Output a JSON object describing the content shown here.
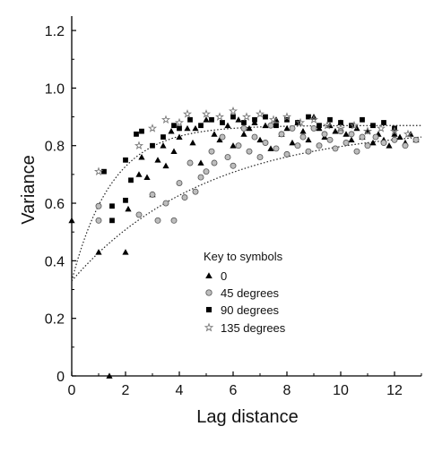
{
  "chart_data": {
    "type": "scatter",
    "xlabel": "Lag distance",
    "ylabel": "Variance",
    "xlim": [
      0,
      13
    ],
    "ylim": [
      0,
      1.25
    ],
    "x_ticks": [
      0,
      2,
      4,
      6,
      8,
      10,
      12
    ],
    "x_tick_labels": [
      "0",
      "2",
      "4",
      "6",
      "8",
      "10",
      "12"
    ],
    "y_ticks": [
      0,
      0.2,
      0.4,
      0.6,
      0.8,
      1.0,
      1.2
    ],
    "y_tick_labels": [
      "0",
      "0.2",
      "0.4",
      "0.6",
      "0.8",
      "1.0",
      "1.2"
    ],
    "grid": false,
    "legend": {
      "title": "Key to symbols",
      "placement": "center-right",
      "entries": [
        {
          "label": "0",
          "marker": "triangle"
        },
        {
          "label": "45 degrees",
          "marker": "circle"
        },
        {
          "label": "90 degrees",
          "marker": "square"
        },
        {
          "label": "135 degrees",
          "marker": "star"
        }
      ]
    },
    "series": [
      {
        "marker": "triangle",
        "color": "#000000",
        "points": [
          [
            0.0,
            0.54
          ],
          [
            1.4,
            0.0
          ],
          [
            1.0,
            0.43
          ],
          [
            2.0,
            0.43
          ],
          [
            2.1,
            0.58
          ],
          [
            2.5,
            0.7
          ],
          [
            2.6,
            0.76
          ],
          [
            2.8,
            0.69
          ],
          [
            3.0,
            0.63
          ],
          [
            3.2,
            0.75
          ],
          [
            3.4,
            0.8
          ],
          [
            3.5,
            0.73
          ],
          [
            3.7,
            0.85
          ],
          [
            3.8,
            0.78
          ],
          [
            4.0,
            0.83
          ],
          [
            4.3,
            0.86
          ],
          [
            4.5,
            0.81
          ],
          [
            4.6,
            0.86
          ],
          [
            4.8,
            0.74
          ],
          [
            5.0,
            0.89
          ],
          [
            5.3,
            0.84
          ],
          [
            5.5,
            0.82
          ],
          [
            5.8,
            0.87
          ],
          [
            6.0,
            0.8
          ],
          [
            6.2,
            0.89
          ],
          [
            6.4,
            0.84
          ],
          [
            6.6,
            0.86
          ],
          [
            6.8,
            0.88
          ],
          [
            7.0,
            0.82
          ],
          [
            7.2,
            0.87
          ],
          [
            7.4,
            0.79
          ],
          [
            7.6,
            0.89
          ],
          [
            7.8,
            0.84
          ],
          [
            8.0,
            0.86
          ],
          [
            8.2,
            0.81
          ],
          [
            8.4,
            0.88
          ],
          [
            8.6,
            0.85
          ],
          [
            8.8,
            0.82
          ],
          [
            9.0,
            0.9
          ],
          [
            9.2,
            0.86
          ],
          [
            9.4,
            0.83
          ],
          [
            9.6,
            0.87
          ],
          [
            9.8,
            0.85
          ],
          [
            10.0,
            0.88
          ],
          [
            10.2,
            0.84
          ],
          [
            10.4,
            0.82
          ],
          [
            10.6,
            0.86
          ],
          [
            10.8,
            0.83
          ],
          [
            11.0,
            0.85
          ],
          [
            11.2,
            0.81
          ],
          [
            11.4,
            0.84
          ],
          [
            11.6,
            0.82
          ],
          [
            11.8,
            0.8
          ],
          [
            12.0,
            0.84
          ],
          [
            12.2,
            0.83
          ],
          [
            12.4,
            0.81
          ],
          [
            12.6,
            0.84
          ],
          [
            12.8,
            0.82
          ]
        ]
      },
      {
        "marker": "circle",
        "color": "#9a9a9a",
        "points": [
          [
            1.0,
            0.59
          ],
          [
            1.0,
            0.54
          ],
          [
            2.5,
            0.56
          ],
          [
            3.0,
            0.63
          ],
          [
            3.2,
            0.54
          ],
          [
            3.5,
            0.6
          ],
          [
            3.8,
            0.54
          ],
          [
            4.0,
            0.67
          ],
          [
            4.2,
            0.62
          ],
          [
            4.4,
            0.74
          ],
          [
            4.6,
            0.64
          ],
          [
            4.8,
            0.69
          ],
          [
            5.0,
            0.71
          ],
          [
            5.2,
            0.78
          ],
          [
            5.3,
            0.74
          ],
          [
            5.6,
            0.83
          ],
          [
            5.8,
            0.76
          ],
          [
            6.0,
            0.73
          ],
          [
            6.2,
            0.8
          ],
          [
            6.4,
            0.86
          ],
          [
            6.6,
            0.78
          ],
          [
            6.8,
            0.83
          ],
          [
            7.0,
            0.76
          ],
          [
            7.2,
            0.81
          ],
          [
            7.4,
            0.87
          ],
          [
            7.6,
            0.79
          ],
          [
            7.8,
            0.84
          ],
          [
            8.0,
            0.77
          ],
          [
            8.2,
            0.86
          ],
          [
            8.4,
            0.8
          ],
          [
            8.6,
            0.83
          ],
          [
            8.8,
            0.78
          ],
          [
            9.0,
            0.86
          ],
          [
            9.2,
            0.8
          ],
          [
            9.4,
            0.84
          ],
          [
            9.6,
            0.82
          ],
          [
            9.8,
            0.79
          ],
          [
            10.0,
            0.85
          ],
          [
            10.2,
            0.81
          ],
          [
            10.4,
            0.84
          ],
          [
            10.6,
            0.78
          ],
          [
            10.8,
            0.83
          ],
          [
            11.0,
            0.8
          ],
          [
            11.3,
            0.83
          ],
          [
            11.6,
            0.81
          ],
          [
            12.0,
            0.82
          ],
          [
            12.4,
            0.8
          ],
          [
            12.8,
            0.82
          ]
        ]
      },
      {
        "marker": "square",
        "color": "#000000",
        "points": [
          [
            1.2,
            0.71
          ],
          [
            1.5,
            0.54
          ],
          [
            1.5,
            0.59
          ],
          [
            2.0,
            0.61
          ],
          [
            2.0,
            0.75
          ],
          [
            2.2,
            0.68
          ],
          [
            2.4,
            0.84
          ],
          [
            2.6,
            0.85
          ],
          [
            3.0,
            0.8
          ],
          [
            3.4,
            0.83
          ],
          [
            3.8,
            0.87
          ],
          [
            4.0,
            0.86
          ],
          [
            4.4,
            0.89
          ],
          [
            4.8,
            0.87
          ],
          [
            5.2,
            0.89
          ],
          [
            5.6,
            0.88
          ],
          [
            6.0,
            0.9
          ],
          [
            6.4,
            0.88
          ],
          [
            6.8,
            0.89
          ],
          [
            7.2,
            0.9
          ],
          [
            7.6,
            0.87
          ],
          [
            8.0,
            0.89
          ],
          [
            8.4,
            0.88
          ],
          [
            8.8,
            0.9
          ],
          [
            9.2,
            0.87
          ],
          [
            9.6,
            0.89
          ],
          [
            10.0,
            0.88
          ],
          [
            10.4,
            0.87
          ],
          [
            10.8,
            0.89
          ],
          [
            11.2,
            0.87
          ],
          [
            11.6,
            0.88
          ],
          [
            12.0,
            0.86
          ]
        ]
      },
      {
        "marker": "star",
        "color": "#777777",
        "points": [
          [
            1.0,
            0.71
          ],
          [
            2.5,
            0.8
          ],
          [
            3.0,
            0.86
          ],
          [
            3.5,
            0.89
          ],
          [
            4.0,
            0.88
          ],
          [
            4.3,
            0.91
          ],
          [
            5.0,
            0.91
          ],
          [
            5.5,
            0.9
          ],
          [
            6.0,
            0.92
          ],
          [
            6.5,
            0.9
          ],
          [
            7.0,
            0.91
          ],
          [
            7.5,
            0.89
          ],
          [
            8.0,
            0.9
          ],
          [
            8.5,
            0.88
          ],
          [
            9.0,
            0.89
          ],
          [
            9.5,
            0.87
          ],
          [
            10.0,
            0.86
          ],
          [
            10.5,
            0.87
          ],
          [
            11.0,
            0.85
          ],
          [
            11.5,
            0.86
          ],
          [
            12.0,
            0.85
          ],
          [
            12.5,
            0.84
          ]
        ]
      }
    ],
    "fitted_curves": [
      {
        "model": "exponential",
        "style": "dotted",
        "nugget": 0.33,
        "sill": 0.87,
        "range": 1.5
      },
      {
        "model": "exponential",
        "style": "dotted",
        "nugget": 0.33,
        "sill": 0.87,
        "range": 5.0
      }
    ]
  }
}
